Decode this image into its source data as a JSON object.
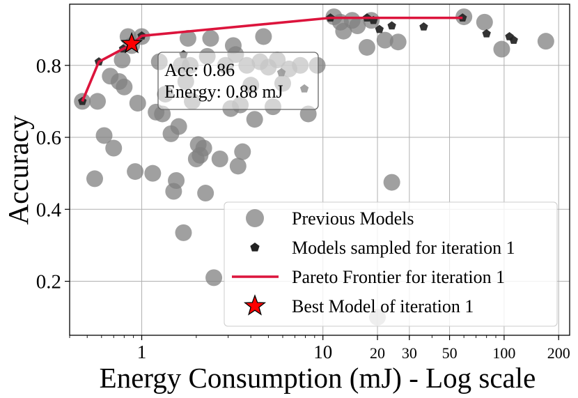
{
  "chart_data": {
    "type": "scatter",
    "xlabel": "Energy Consumption (mJ) - Log scale",
    "ylabel": "Accuracy",
    "xscale": "log",
    "xlim": [
      0.4,
      230
    ],
    "ylim": [
      0.05,
      0.97
    ],
    "grid": true,
    "x_ticks": [
      {
        "value": 1,
        "label": "1"
      },
      {
        "value": 10,
        "label": "10"
      },
      {
        "value": 20,
        "label": "20"
      },
      {
        "value": 30,
        "label": "30"
      },
      {
        "value": 50,
        "label": "50"
      },
      {
        "value": 100,
        "label": "100"
      },
      {
        "value": 200,
        "label": "200"
      }
    ],
    "y_ticks": [
      {
        "value": 0.2,
        "label": "0.2"
      },
      {
        "value": 0.4,
        "label": "0.4"
      },
      {
        "value": 0.6,
        "label": "0.6"
      },
      {
        "value": 0.8,
        "label": "0.8"
      }
    ],
    "legend_position": "bottom-right",
    "colors": {
      "previous": "#808080",
      "sampled": "#222222",
      "frontier": "#dc143c",
      "best": "#ff0000",
      "grid": "#b0b0b0"
    },
    "series": [
      {
        "name": "Previous Models",
        "marker": "circle",
        "points": [
          [
            0.47,
            0.7
          ],
          [
            0.55,
            0.485
          ],
          [
            0.57,
            0.7
          ],
          [
            0.62,
            0.605
          ],
          [
            0.67,
            0.77
          ],
          [
            0.7,
            0.57
          ],
          [
            0.75,
            0.755
          ],
          [
            0.78,
            0.815
          ],
          [
            0.8,
            0.74
          ],
          [
            0.84,
            0.88
          ],
          [
            0.88,
            0.855
          ],
          [
            0.92,
            0.505
          ],
          [
            0.95,
            0.695
          ],
          [
            1.0,
            0.88
          ],
          [
            1.15,
            0.5
          ],
          [
            1.2,
            0.67
          ],
          [
            1.25,
            0.81
          ],
          [
            1.3,
            0.665
          ],
          [
            1.35,
            0.72
          ],
          [
            1.45,
            0.61
          ],
          [
            1.5,
            0.45
          ],
          [
            1.55,
            0.48
          ],
          [
            1.6,
            0.63
          ],
          [
            1.65,
            0.8
          ],
          [
            1.7,
            0.335
          ],
          [
            1.75,
            0.755
          ],
          [
            1.8,
            0.875
          ],
          [
            1.85,
            0.8
          ],
          [
            1.9,
            0.7
          ],
          [
            2.0,
            0.54
          ],
          [
            2.05,
            0.58
          ],
          [
            2.1,
            0.55
          ],
          [
            2.2,
            0.57
          ],
          [
            2.25,
            0.445
          ],
          [
            2.3,
            0.825
          ],
          [
            2.4,
            0.875
          ],
          [
            2.5,
            0.21
          ],
          [
            2.7,
            0.54
          ],
          [
            2.9,
            0.8
          ],
          [
            3.1,
            0.68
          ],
          [
            3.2,
            0.855
          ],
          [
            3.3,
            0.83
          ],
          [
            3.4,
            0.52
          ],
          [
            3.5,
            0.69
          ],
          [
            3.6,
            0.56
          ],
          [
            3.8,
            0.8
          ],
          [
            4.0,
            0.745
          ],
          [
            4.2,
            0.65
          ],
          [
            4.5,
            0.81
          ],
          [
            4.7,
            0.88
          ],
          [
            5.0,
            0.795
          ],
          [
            5.3,
            0.685
          ],
          [
            5.6,
            0.815
          ],
          [
            6.0,
            0.75
          ],
          [
            6.5,
            0.79
          ],
          [
            7.5,
            0.8
          ],
          [
            8.3,
            0.665
          ],
          [
            9.3,
            0.8
          ],
          [
            11.5,
            0.935
          ],
          [
            12.5,
            0.92
          ],
          [
            13.0,
            0.895
          ],
          [
            14.5,
            0.925
          ],
          [
            15.5,
            0.91
          ],
          [
            17.5,
            0.85
          ],
          [
            18.5,
            0.925
          ],
          [
            20.0,
            0.1
          ],
          [
            22.0,
            0.87
          ],
          [
            24.0,
            0.475
          ],
          [
            26.0,
            0.865
          ],
          [
            60.0,
            0.935
          ],
          [
            78.0,
            0.92
          ],
          [
            97.0,
            0.845
          ],
          [
            170.0,
            0.867
          ]
        ]
      },
      {
        "name": "Models sampled for iteration 1",
        "marker": "pentagon",
        "points": [
          [
            0.47,
            0.7
          ],
          [
            0.58,
            0.81
          ],
          [
            0.79,
            0.846
          ],
          [
            0.87,
            0.856
          ],
          [
            1.0,
            0.882
          ],
          [
            1.7,
            0.83
          ],
          [
            5.9,
            0.78
          ],
          [
            7.9,
            0.735
          ],
          [
            11.0,
            0.932
          ],
          [
            17.5,
            0.932
          ],
          [
            19.0,
            0.925
          ],
          [
            20.5,
            0.9
          ],
          [
            24.0,
            0.91
          ],
          [
            36.0,
            0.907
          ],
          [
            59.0,
            0.932
          ],
          [
            80.0,
            0.888
          ],
          [
            107.0,
            0.88
          ],
          [
            113.0,
            0.87
          ]
        ]
      },
      {
        "name": "Pareto Frontier for iteration 1",
        "marker": "line",
        "points": [
          [
            0.47,
            0.7
          ],
          [
            0.58,
            0.81
          ],
          [
            0.79,
            0.846
          ],
          [
            0.87,
            0.856
          ],
          [
            1.0,
            0.882
          ],
          [
            11.0,
            0.932
          ],
          [
            59.0,
            0.932
          ]
        ]
      },
      {
        "name": "Best Model of iteration 1",
        "marker": "star",
        "points": [
          [
            0.88,
            0.86
          ]
        ]
      }
    ],
    "annotation": {
      "x": 0.88,
      "y": 0.86,
      "line1": "Acc: 0.86",
      "line2": "Energy: 0.88 mJ"
    }
  }
}
